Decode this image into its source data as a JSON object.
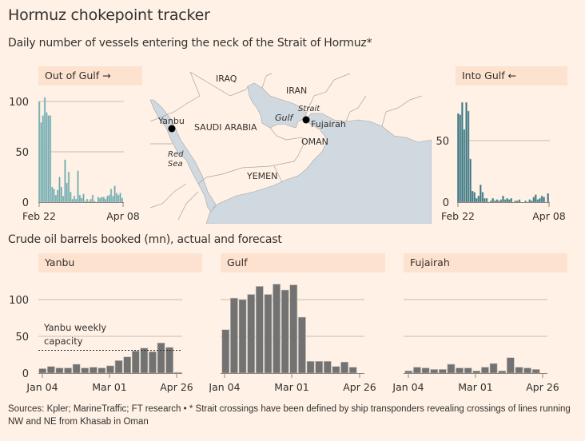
{
  "header": {
    "title": "Hormuz chokepoint tracker",
    "subtitle": "Daily number of vessels entering the neck of the Strait of Hormuz*",
    "subtitle2": "Crude oil barrels booked (mn), actual and forecast"
  },
  "colors": {
    "background": "#fff1e5",
    "label_bg": "#fde2cf",
    "out_of_gulf_bar": "#6ea5a8",
    "into_gulf_bar": "#3e727e",
    "booked_bar": "#727272",
    "grid": "#c8bcb2",
    "sea": "#d0d8e0",
    "land": "#fff1e5",
    "border": "#a7a5a3"
  },
  "map": {
    "labels": {
      "iraq": "IRAQ",
      "iran": "IRAN",
      "saudi": "SAUDI ARABIA",
      "oman": "OMAN",
      "yemen": "YEMEN",
      "yanbu": "Yanbu",
      "fujairah": "Fujairah",
      "gulf": "Gulf",
      "strait": "Strait",
      "red": "Red",
      "sea": "Sea"
    }
  },
  "chart_data": [
    {
      "id": "out_of_gulf",
      "type": "bar",
      "title": "Out of Gulf →",
      "xlabel": "",
      "ylabel": "",
      "x_tick_labels": [
        "Feb 22",
        "Apr 08"
      ],
      "y_ticks": [
        0,
        50,
        100
      ],
      "ylim": [
        0,
        100
      ],
      "grid": true,
      "values": [
        100,
        79,
        86,
        104,
        89,
        86,
        86,
        15,
        13,
        7,
        12,
        25,
        15,
        6,
        42,
        19,
        30,
        10,
        3,
        6,
        3,
        31,
        7,
        4,
        8,
        1,
        3,
        1,
        3,
        7,
        1,
        0,
        5,
        4,
        5,
        5,
        3,
        6,
        7,
        13,
        6,
        16,
        9,
        7,
        9,
        4
      ]
    },
    {
      "id": "into_gulf",
      "type": "bar",
      "title": "Into Gulf ←",
      "xlabel": "",
      "ylabel": "",
      "x_tick_labels": [
        "Feb 22",
        "Apr 08"
      ],
      "y_ticks": [
        0,
        50
      ],
      "ylim": [
        0,
        85
      ],
      "grid": true,
      "values": [
        72,
        71,
        81,
        59,
        81,
        74,
        35,
        9,
        8,
        3,
        5,
        14,
        8,
        3,
        3,
        0,
        1,
        3,
        1,
        2,
        1,
        2,
        5,
        2,
        3,
        2,
        3,
        0,
        1,
        1,
        2,
        0,
        0,
        1,
        0,
        2,
        1,
        4,
        6,
        2,
        3,
        5,
        4,
        0,
        7
      ]
    },
    {
      "id": "yanbu",
      "type": "bar",
      "title": "Yanbu",
      "xlabel": "",
      "ylabel": "",
      "x_tick_labels": [
        "Jan 04",
        "Mar 01",
        "Apr 26"
      ],
      "y_ticks": [
        0,
        50,
        100
      ],
      "ylim": [
        0,
        125
      ],
      "grid": true,
      "annotation": {
        "line1": "Yanbu weekly",
        "line2": "capacity",
        "value": 31
      },
      "values": [
        6,
        9,
        7,
        7,
        12,
        7,
        8,
        7,
        10,
        17,
        22,
        30,
        34,
        29,
        41,
        35,
        1
      ]
    },
    {
      "id": "gulf",
      "type": "bar",
      "title": "Gulf",
      "xlabel": "",
      "ylabel": "",
      "x_tick_labels": [
        "Jan 04",
        "Mar 01",
        "Apr 26"
      ],
      "y_ticks": [
        0,
        50,
        100
      ],
      "ylim": [
        0,
        125
      ],
      "grid": true,
      "values": [
        59,
        102,
        100,
        107,
        118,
        107,
        121,
        113,
        120,
        76,
        16,
        16,
        16,
        9,
        15,
        8
      ]
    },
    {
      "id": "fujairah",
      "type": "bar",
      "title": "Fujairah",
      "xlabel": "",
      "ylabel": "",
      "x_tick_labels": [
        "Jan 04",
        "Mar 01",
        "Apr 26"
      ],
      "y_ticks": [
        0,
        50,
        100
      ],
      "ylim": [
        0,
        125
      ],
      "grid": true,
      "values": [
        3,
        8,
        7,
        5,
        5,
        12,
        7,
        7,
        3,
        8,
        13,
        3,
        21,
        8,
        7,
        5
      ]
    }
  ],
  "footer": {
    "source": "Sources: Kpler; MarineTraffic; FT research • * Strait crossings have been defined by ship transponders revealing crossings of lines running NW and NE from Khasab in Oman"
  }
}
